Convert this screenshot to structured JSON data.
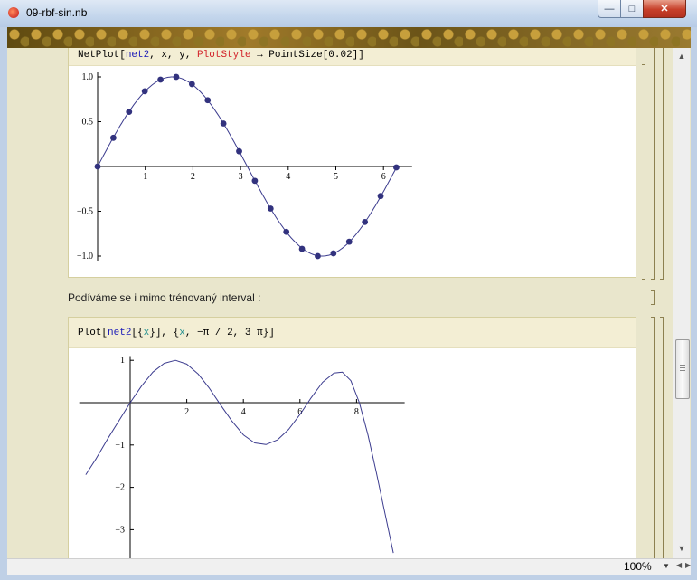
{
  "window": {
    "title": "09-rbf-sin.nb",
    "min_glyph": "—",
    "max_glyph": "□",
    "close_glyph": "✕"
  },
  "cell1": {
    "input": [
      "NetPlot",
      "[",
      "net2",
      ", x, y, ",
      "PlotStyle",
      " → PointSize[0.02]]"
    ]
  },
  "text_cell": "Podíváme se i mimo trénovaný interval :",
  "cell2": {
    "input": [
      "Plot",
      "[",
      "net2",
      "[{",
      "x",
      "}], {",
      "x",
      ", −π / 2, 3 π}]"
    ]
  },
  "status": {
    "zoom": "100%"
  },
  "chart_data": [
    {
      "type": "scatter",
      "xlim": [
        0,
        6.6
      ],
      "ylim": [
        -1.05,
        1.05
      ],
      "x_ticks": [
        "1",
        "2",
        "3",
        "4",
        "5",
        "6"
      ],
      "y_ticks": [
        "1.0",
        "0.5",
        "−0.5",
        "−1.0"
      ],
      "curve": "sin(x)",
      "points_x": [
        0,
        0.33,
        0.66,
        0.99,
        1.32,
        1.65,
        1.98,
        2.31,
        2.64,
        2.97,
        3.3,
        3.63,
        3.96,
        4.29,
        4.62,
        4.95,
        5.28,
        5.61,
        5.94,
        6.27
      ],
      "points_y": [
        0.0,
        0.32,
        0.61,
        0.84,
        0.97,
        1.0,
        0.92,
        0.74,
        0.48,
        0.17,
        -0.16,
        -0.47,
        -0.73,
        -0.92,
        -1.0,
        -0.97,
        -0.84,
        -0.62,
        -0.33,
        -0.01
      ]
    },
    {
      "type": "line",
      "xlim": [
        -1.5708,
        9.4248
      ],
      "ylim": [
        -3.6,
        1.1
      ],
      "x_ticks": [
        "2",
        "4",
        "6",
        "8"
      ],
      "y_ticks": [
        "1",
        "−1",
        "−2",
        "−3"
      ],
      "x": [
        -1.57,
        -1.2,
        -0.8,
        -0.4,
        0,
        0.4,
        0.8,
        1.2,
        1.6,
        2.0,
        2.4,
        2.8,
        3.2,
        3.6,
        4.0,
        4.4,
        4.8,
        5.2,
        5.6,
        6.0,
        6.4,
        6.8,
        7.2,
        7.5,
        7.8,
        8.1,
        8.4,
        8.7,
        9.0,
        9.3
      ],
      "y": [
        -1.7,
        -1.32,
        -0.86,
        -0.43,
        0.0,
        0.39,
        0.72,
        0.93,
        1.0,
        0.91,
        0.68,
        0.34,
        -0.06,
        -0.44,
        -0.76,
        -0.95,
        -0.99,
        -0.88,
        -0.63,
        -0.28,
        0.12,
        0.48,
        0.7,
        0.72,
        0.52,
        0.0,
        -0.75,
        -1.65,
        -2.6,
        -3.55
      ]
    }
  ]
}
